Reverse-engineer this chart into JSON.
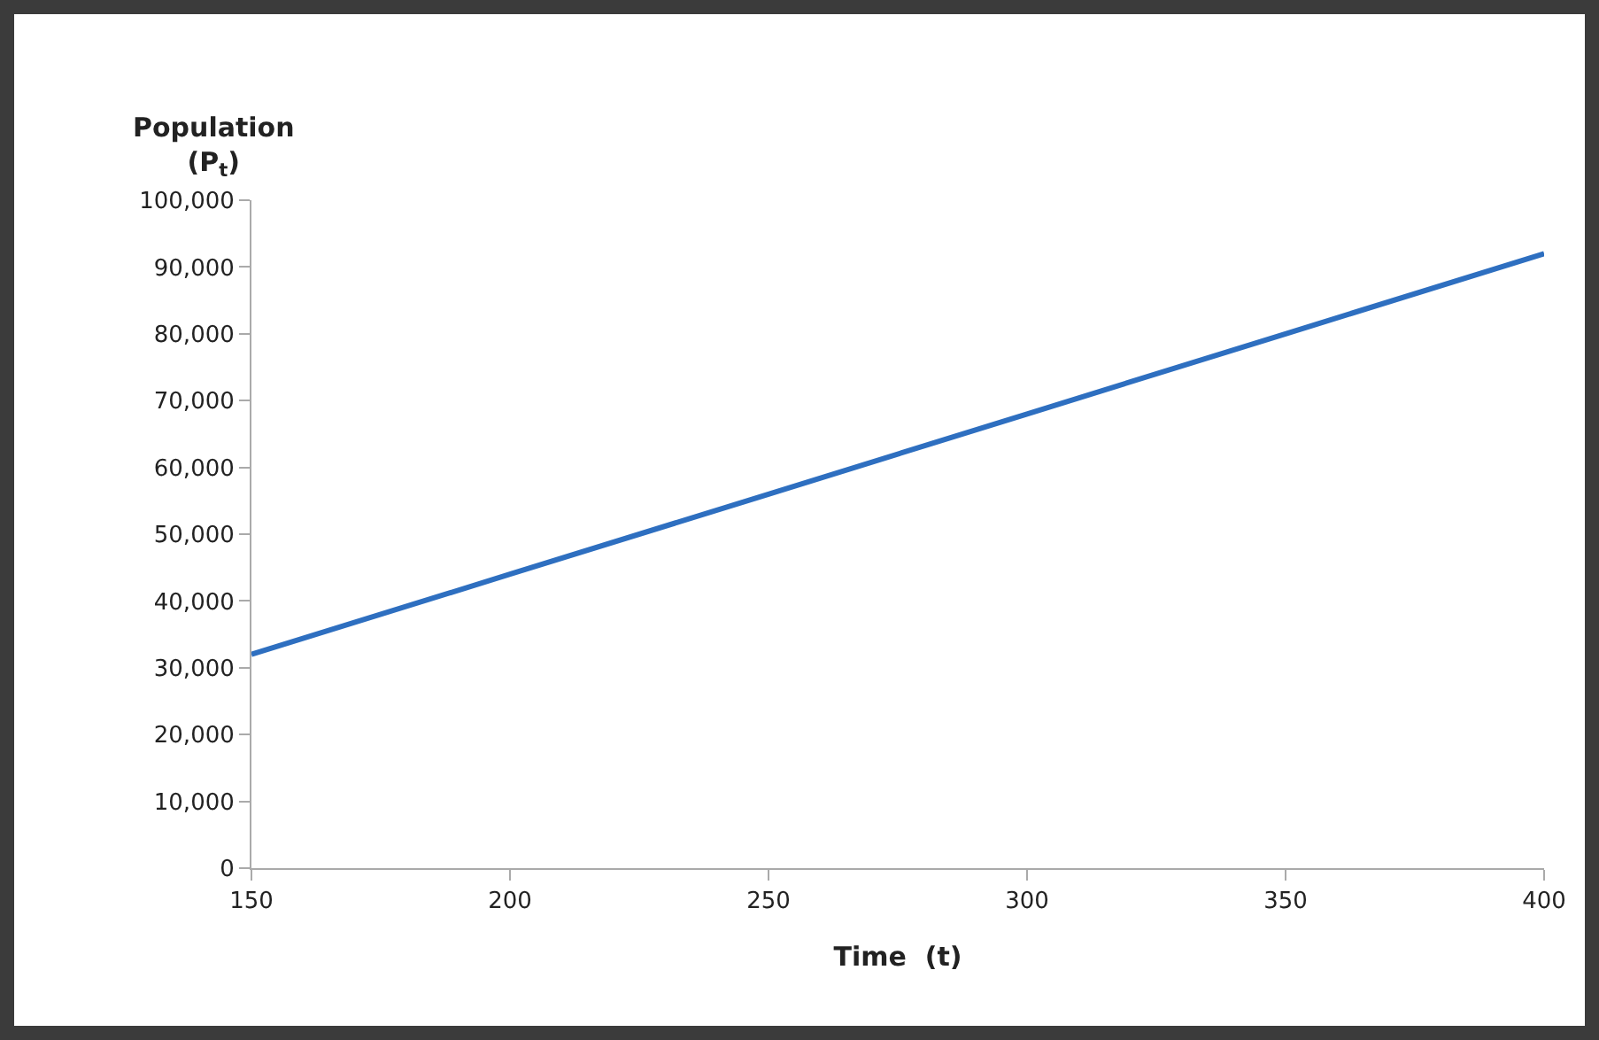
{
  "chart_data": {
    "type": "line",
    "ylabel": "Population\n(P$_{t}$)",
    "xlabel": "Time  (t)",
    "x": [
      150,
      200,
      250,
      300,
      350,
      400
    ],
    "series": [
      {
        "color": "#2e6fc0",
        "values": [
          32000,
          44000,
          56000,
          68000,
          80000,
          92000
        ]
      }
    ],
    "xlim": [
      150,
      400
    ],
    "xticks": [
      150,
      200,
      250,
      300,
      350,
      400
    ],
    "ylim": [
      0,
      100000
    ],
    "yticks": [
      {
        "value": 0,
        "label": "0"
      },
      {
        "value": 10000,
        "label": "10,000"
      },
      {
        "value": 20000,
        "label": "20,000"
      },
      {
        "value": 30000,
        "label": "30,000"
      },
      {
        "value": 40000,
        "label": "40,000"
      },
      {
        "value": 50000,
        "label": "50,000"
      },
      {
        "value": 60000,
        "label": "60,000"
      },
      {
        "value": 70000,
        "label": "70,000"
      },
      {
        "value": 80000,
        "label": "80,000"
      },
      {
        "value": 90000,
        "label": "90,000"
      },
      {
        "value": 100000,
        "label": "100,000"
      }
    ],
    "grid": false,
    "marker": "none",
    "line_style": "solid"
  }
}
